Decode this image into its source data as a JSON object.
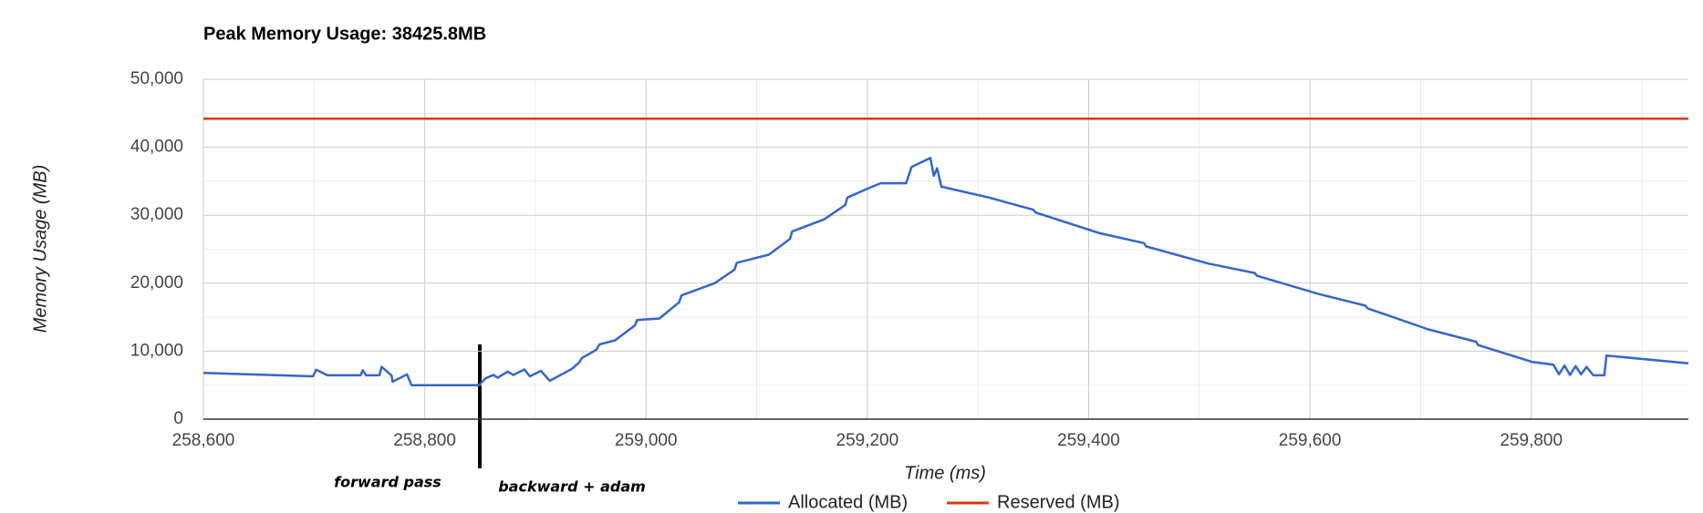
{
  "chart_data": {
    "type": "line",
    "title": "Peak Memory Usage: 38425.8MB",
    "xlabel": "Time (ms)",
    "ylabel": "Memory Usage (MB)",
    "annotations": [
      "forward pass",
      "backward + adam"
    ],
    "xlim": [
      258600,
      259942
    ],
    "ylim": [
      0,
      50000
    ],
    "xticks": [
      {
        "value": 258600,
        "label": "258,600"
      },
      {
        "value": 258800,
        "label": "258,800"
      },
      {
        "value": 259000,
        "label": "259,000"
      },
      {
        "value": 259200,
        "label": "259,200"
      },
      {
        "value": 259400,
        "label": "259,400"
      },
      {
        "value": 259600,
        "label": "259,600"
      },
      {
        "value": 259800,
        "label": "259,800"
      }
    ],
    "yticks": [
      0,
      {
        "value": 10000,
        "label": "10,000"
      },
      {
        "value": 20000,
        "label": "20,000"
      },
      {
        "value": 30000,
        "label": "30,000"
      },
      {
        "value": 40000,
        "label": "40,000"
      },
      {
        "value": 50000,
        "label": "50,000"
      }
    ],
    "grid": true,
    "legend": "bottom",
    "series": [
      {
        "name": "Allocated (MB)",
        "color": "#3366cc",
        "x": [
          258600,
          258699,
          258702,
          258712,
          258742,
          258744,
          258747,
          258759,
          258761,
          258770,
          258771,
          258784,
          258788,
          258849,
          258855,
          258862,
          258866,
          258875,
          258880,
          258890,
          258895,
          258905,
          258913,
          258933,
          258940,
          258942,
          258955,
          258958,
          258972,
          258990,
          258992,
          259012,
          259030,
          259032,
          259062,
          259080,
          259082,
          259111,
          259130,
          259132,
          259161,
          259180,
          259182,
          259200,
          259212,
          259235,
          259240,
          259257,
          259260,
          259263,
          259267,
          259310,
          259350,
          259352,
          259409,
          259450,
          259452,
          259508,
          259550,
          259552,
          259608,
          259650,
          259652,
          259707,
          259750,
          259752,
          259801,
          259820,
          259825,
          259830,
          259835,
          259840,
          259845,
          259850,
          259856,
          259866,
          259868,
          259942
        ],
        "values": [
          6800,
          6300,
          7260,
          6450,
          6450,
          7200,
          6450,
          6450,
          7700,
          6450,
          5500,
          6600,
          5000,
          5000,
          6000,
          6500,
          6100,
          7000,
          6500,
          7300,
          6300,
          7100,
          5650,
          7400,
          8400,
          9000,
          10200,
          11000,
          11600,
          13800,
          14600,
          14800,
          17200,
          18200,
          20000,
          22000,
          23000,
          24200,
          26500,
          27600,
          29400,
          31500,
          32600,
          33900,
          34700,
          34700,
          37100,
          38425.8,
          35800,
          36900,
          34200,
          32600,
          30800,
          30400,
          27400,
          25900,
          25400,
          22900,
          21500,
          21100,
          18400,
          16700,
          16300,
          13200,
          11400,
          10900,
          8400,
          8000,
          6600,
          7900,
          6500,
          7800,
          6600,
          7700,
          6450,
          6450,
          9350,
          8200
        ]
      },
      {
        "name": "Reserved (MB)",
        "color": "#dc3912",
        "x": [
          258600,
          259942
        ],
        "values": [
          44200,
          44200
        ]
      }
    ]
  }
}
